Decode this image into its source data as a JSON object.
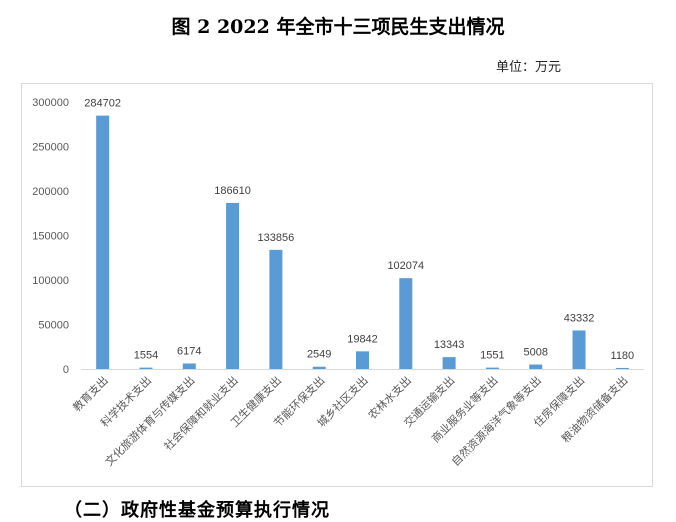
{
  "figure_title": "图 2 2022 年全市十三项民生支出情况",
  "unit_label": "单位：万元",
  "section_heading": "（二）政府性基金预算执行情况",
  "colors": {
    "bar": "#5b9bd5",
    "axis": "#d9d9d9",
    "tick_text": "#595959"
  },
  "chart_data": {
    "type": "bar",
    "title": "图 2 2022 年全市十三项民生支出情况",
    "xlabel": "",
    "ylabel": "",
    "ylim": [
      0,
      300000
    ],
    "yticks": [
      "0",
      "50000",
      "100000",
      "150000",
      "200000",
      "250000",
      "300000"
    ],
    "grid": false,
    "legend": "none",
    "categories": [
      "教育支出",
      "科学技术支出",
      "文化旅游体育与传媒支出",
      "社会保障和就业支出",
      "卫生健康支出",
      "节能环保支出",
      "城乡社区支出",
      "农林水支出",
      "交通运输支出",
      "商业服务业等支出",
      "自然资源海洋气象等支出",
      "住房保障支出",
      "粮油物资储备支出"
    ],
    "values": [
      284702,
      1554,
      6174,
      186610,
      133856,
      2549,
      19842,
      102074,
      13343,
      1551,
      5008,
      43332,
      1180
    ],
    "data_labels": [
      "284702",
      "1554",
      "6174",
      "186610",
      "133856",
      "2549",
      "19842",
      "102074",
      "13343",
      "1551",
      "5008",
      "43332",
      "1180"
    ]
  }
}
